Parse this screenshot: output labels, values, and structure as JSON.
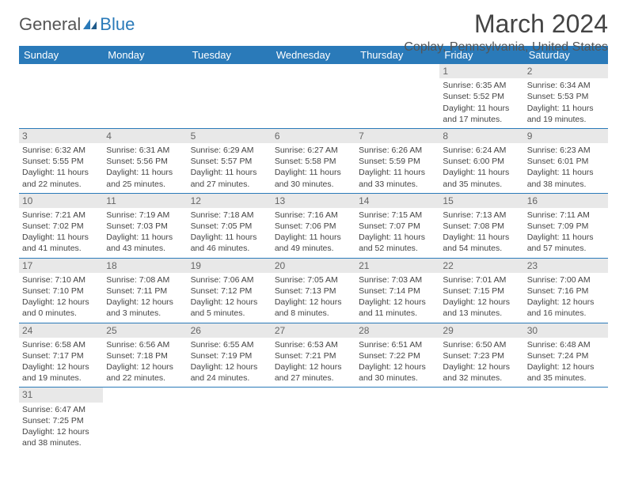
{
  "logo": {
    "text1": "General",
    "text2": "Blue"
  },
  "title": "March 2024",
  "location": "Coplay, Pennsylvania, United States",
  "colors": {
    "headerBg": "#2a7ab9",
    "dayBg": "#e8e8e8",
    "text": "#444444"
  },
  "dayHeaders": [
    "Sunday",
    "Monday",
    "Tuesday",
    "Wednesday",
    "Thursday",
    "Friday",
    "Saturday"
  ],
  "cells": [
    {
      "n": "",
      "sr": "",
      "ss": "",
      "dl": ""
    },
    {
      "n": "",
      "sr": "",
      "ss": "",
      "dl": ""
    },
    {
      "n": "",
      "sr": "",
      "ss": "",
      "dl": ""
    },
    {
      "n": "",
      "sr": "",
      "ss": "",
      "dl": ""
    },
    {
      "n": "",
      "sr": "",
      "ss": "",
      "dl": ""
    },
    {
      "n": "1",
      "sr": "Sunrise: 6:35 AM",
      "ss": "Sunset: 5:52 PM",
      "dl": "Daylight: 11 hours and 17 minutes."
    },
    {
      "n": "2",
      "sr": "Sunrise: 6:34 AM",
      "ss": "Sunset: 5:53 PM",
      "dl": "Daylight: 11 hours and 19 minutes."
    },
    {
      "n": "3",
      "sr": "Sunrise: 6:32 AM",
      "ss": "Sunset: 5:55 PM",
      "dl": "Daylight: 11 hours and 22 minutes."
    },
    {
      "n": "4",
      "sr": "Sunrise: 6:31 AM",
      "ss": "Sunset: 5:56 PM",
      "dl": "Daylight: 11 hours and 25 minutes."
    },
    {
      "n": "5",
      "sr": "Sunrise: 6:29 AM",
      "ss": "Sunset: 5:57 PM",
      "dl": "Daylight: 11 hours and 27 minutes."
    },
    {
      "n": "6",
      "sr": "Sunrise: 6:27 AM",
      "ss": "Sunset: 5:58 PM",
      "dl": "Daylight: 11 hours and 30 minutes."
    },
    {
      "n": "7",
      "sr": "Sunrise: 6:26 AM",
      "ss": "Sunset: 5:59 PM",
      "dl": "Daylight: 11 hours and 33 minutes."
    },
    {
      "n": "8",
      "sr": "Sunrise: 6:24 AM",
      "ss": "Sunset: 6:00 PM",
      "dl": "Daylight: 11 hours and 35 minutes."
    },
    {
      "n": "9",
      "sr": "Sunrise: 6:23 AM",
      "ss": "Sunset: 6:01 PM",
      "dl": "Daylight: 11 hours and 38 minutes."
    },
    {
      "n": "10",
      "sr": "Sunrise: 7:21 AM",
      "ss": "Sunset: 7:02 PM",
      "dl": "Daylight: 11 hours and 41 minutes."
    },
    {
      "n": "11",
      "sr": "Sunrise: 7:19 AM",
      "ss": "Sunset: 7:03 PM",
      "dl": "Daylight: 11 hours and 43 minutes."
    },
    {
      "n": "12",
      "sr": "Sunrise: 7:18 AM",
      "ss": "Sunset: 7:05 PM",
      "dl": "Daylight: 11 hours and 46 minutes."
    },
    {
      "n": "13",
      "sr": "Sunrise: 7:16 AM",
      "ss": "Sunset: 7:06 PM",
      "dl": "Daylight: 11 hours and 49 minutes."
    },
    {
      "n": "14",
      "sr": "Sunrise: 7:15 AM",
      "ss": "Sunset: 7:07 PM",
      "dl": "Daylight: 11 hours and 52 minutes."
    },
    {
      "n": "15",
      "sr": "Sunrise: 7:13 AM",
      "ss": "Sunset: 7:08 PM",
      "dl": "Daylight: 11 hours and 54 minutes."
    },
    {
      "n": "16",
      "sr": "Sunrise: 7:11 AM",
      "ss": "Sunset: 7:09 PM",
      "dl": "Daylight: 11 hours and 57 minutes."
    },
    {
      "n": "17",
      "sr": "Sunrise: 7:10 AM",
      "ss": "Sunset: 7:10 PM",
      "dl": "Daylight: 12 hours and 0 minutes."
    },
    {
      "n": "18",
      "sr": "Sunrise: 7:08 AM",
      "ss": "Sunset: 7:11 PM",
      "dl": "Daylight: 12 hours and 3 minutes."
    },
    {
      "n": "19",
      "sr": "Sunrise: 7:06 AM",
      "ss": "Sunset: 7:12 PM",
      "dl": "Daylight: 12 hours and 5 minutes."
    },
    {
      "n": "20",
      "sr": "Sunrise: 7:05 AM",
      "ss": "Sunset: 7:13 PM",
      "dl": "Daylight: 12 hours and 8 minutes."
    },
    {
      "n": "21",
      "sr": "Sunrise: 7:03 AM",
      "ss": "Sunset: 7:14 PM",
      "dl": "Daylight: 12 hours and 11 minutes."
    },
    {
      "n": "22",
      "sr": "Sunrise: 7:01 AM",
      "ss": "Sunset: 7:15 PM",
      "dl": "Daylight: 12 hours and 13 minutes."
    },
    {
      "n": "23",
      "sr": "Sunrise: 7:00 AM",
      "ss": "Sunset: 7:16 PM",
      "dl": "Daylight: 12 hours and 16 minutes."
    },
    {
      "n": "24",
      "sr": "Sunrise: 6:58 AM",
      "ss": "Sunset: 7:17 PM",
      "dl": "Daylight: 12 hours and 19 minutes."
    },
    {
      "n": "25",
      "sr": "Sunrise: 6:56 AM",
      "ss": "Sunset: 7:18 PM",
      "dl": "Daylight: 12 hours and 22 minutes."
    },
    {
      "n": "26",
      "sr": "Sunrise: 6:55 AM",
      "ss": "Sunset: 7:19 PM",
      "dl": "Daylight: 12 hours and 24 minutes."
    },
    {
      "n": "27",
      "sr": "Sunrise: 6:53 AM",
      "ss": "Sunset: 7:21 PM",
      "dl": "Daylight: 12 hours and 27 minutes."
    },
    {
      "n": "28",
      "sr": "Sunrise: 6:51 AM",
      "ss": "Sunset: 7:22 PM",
      "dl": "Daylight: 12 hours and 30 minutes."
    },
    {
      "n": "29",
      "sr": "Sunrise: 6:50 AM",
      "ss": "Sunset: 7:23 PM",
      "dl": "Daylight: 12 hours and 32 minutes."
    },
    {
      "n": "30",
      "sr": "Sunrise: 6:48 AM",
      "ss": "Sunset: 7:24 PM",
      "dl": "Daylight: 12 hours and 35 minutes."
    },
    {
      "n": "31",
      "sr": "Sunrise: 6:47 AM",
      "ss": "Sunset: 7:25 PM",
      "dl": "Daylight: 12 hours and 38 minutes."
    },
    {
      "n": "",
      "sr": "",
      "ss": "",
      "dl": ""
    },
    {
      "n": "",
      "sr": "",
      "ss": "",
      "dl": ""
    },
    {
      "n": "",
      "sr": "",
      "ss": "",
      "dl": ""
    },
    {
      "n": "",
      "sr": "",
      "ss": "",
      "dl": ""
    },
    {
      "n": "",
      "sr": "",
      "ss": "",
      "dl": ""
    },
    {
      "n": "",
      "sr": "",
      "ss": "",
      "dl": ""
    }
  ]
}
